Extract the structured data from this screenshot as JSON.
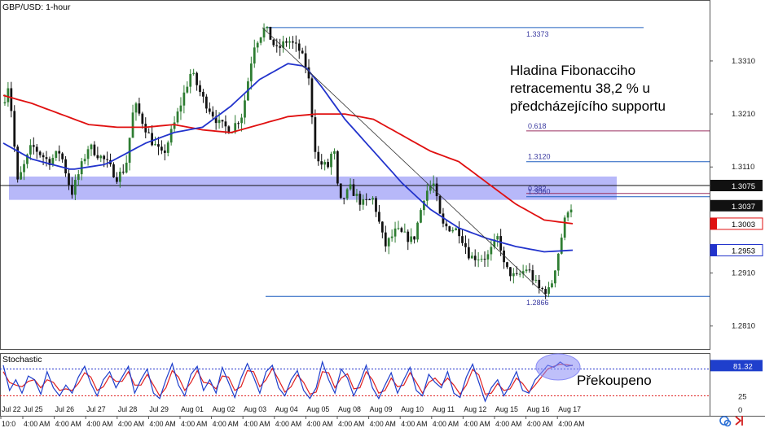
{
  "header": {
    "symbol_title": "GBP/USD: 1-hour",
    "indicator_title": "Stochastic"
  },
  "annotations": {
    "fib_note_line1": "Hladina Fibonacciho",
    "fib_note_line2": "retracementu 38,2 % u",
    "fib_note_line3": "předcházejícího supportu",
    "overbought_note": "Překoupeno"
  },
  "toolbar": {
    "cycle_icon": "cycle-arrows-icon",
    "expand_icon": "expand-arrow-icon"
  },
  "colors": {
    "up_candle": "#2e7d32",
    "down_candle": "#111111",
    "ma_fast": "#2233cc",
    "ma_slow": "#e01010",
    "support_zone": "#8a8cf5",
    "fib_line": "#1f5fbf",
    "fib_text": "#3a3aa0",
    "stoch_k": "#1f3fcc",
    "stoch_d": "#e02020",
    "current_price_bg": "#111111",
    "slow_ma_bg": "#e01010",
    "fast_ma_bg": "#2233cc",
    "highlight_ellipse": "#8a8cf5"
  },
  "chart_data": {
    "type": "candlestick",
    "title": "GBP/USD: 1-hour",
    "price_axis": {
      "ticks": [
        1.331,
        1.321,
        1.311,
        1.291,
        1.281
      ],
      "tick_labels": [
        "1.3310",
        "1.3210",
        "1.3110",
        "1.2910",
        "1.2810"
      ],
      "range": [
        1.2765,
        1.3425
      ]
    },
    "date_labels": [
      "Jul 22",
      "Jul 25",
      "Jul 26",
      "Jul 27",
      "Jul 28",
      "Jul 29",
      "Aug 01",
      "Aug 02",
      "Aug 03",
      "Aug 04",
      "Aug 05",
      "Aug 08",
      "Aug 09",
      "Aug 10",
      "Aug 11",
      "Aug 12",
      "Aug 15",
      "Aug 16",
      "Aug 17"
    ],
    "time_labels": [
      "10:0",
      "4:00 AM",
      "4:00 AM",
      "4:00 AM",
      "4:00 AM",
      "4:00 AM",
      "4:00 AM",
      "4:00 AM",
      "4:00 AM",
      "4:00 AM",
      "4:00 AM",
      "4:00 AM",
      "4:00 AM",
      "4:00 AM",
      "4:00 AM",
      "4:00 AM",
      "4:00 AM",
      "4:00 AM",
      "4:00 AM"
    ],
    "price_path": [
      [
        0,
        1.323
      ],
      [
        0.01,
        1.327
      ],
      [
        0.025,
        1.308
      ],
      [
        0.05,
        1.315
      ],
      [
        0.08,
        1.312
      ],
      [
        0.1,
        1.314
      ],
      [
        0.12,
        1.306
      ],
      [
        0.15,
        1.315
      ],
      [
        0.18,
        1.312
      ],
      [
        0.2,
        1.309
      ],
      [
        0.215,
        1.311
      ],
      [
        0.23,
        1.323
      ],
      [
        0.26,
        1.316
      ],
      [
        0.28,
        1.313
      ],
      [
        0.3,
        1.319
      ],
      [
        0.33,
        1.329
      ],
      [
        0.35,
        1.324
      ],
      [
        0.38,
        1.319
      ],
      [
        0.4,
        1.318
      ],
      [
        0.42,
        1.321
      ],
      [
        0.44,
        1.334
      ],
      [
        0.46,
        1.3373
      ],
      [
        0.48,
        1.333
      ],
      [
        0.5,
        1.335
      ],
      [
        0.52,
        1.333
      ],
      [
        0.535,
        1.329
      ],
      [
        0.55,
        1.312
      ],
      [
        0.57,
        1.311
      ],
      [
        0.58,
        1.315
      ],
      [
        0.59,
        1.304
      ],
      [
        0.61,
        1.307
      ],
      [
        0.63,
        1.304
      ],
      [
        0.65,
        1.305
      ],
      [
        0.67,
        1.296
      ],
      [
        0.69,
        1.299
      ],
      [
        0.72,
        1.297
      ],
      [
        0.74,
        1.306
      ],
      [
        0.755,
        1.308
      ],
      [
        0.77,
        1.3
      ],
      [
        0.8,
        1.299
      ],
      [
        0.82,
        1.294
      ],
      [
        0.85,
        1.294
      ],
      [
        0.87,
        1.298
      ],
      [
        0.88,
        1.292
      ],
      [
        0.9,
        1.29
      ],
      [
        0.92,
        1.292
      ],
      [
        0.94,
        1.288
      ],
      [
        0.96,
        1.2876
      ],
      [
        0.975,
        1.295
      ],
      [
        0.99,
        1.303
      ],
      [
        1.0,
        1.3037
      ]
    ],
    "ma_fast_path": [
      [
        0,
        1.3155
      ],
      [
        0.05,
        1.3125
      ],
      [
        0.12,
        1.3105
      ],
      [
        0.18,
        1.3115
      ],
      [
        0.25,
        1.3155
      ],
      [
        0.3,
        1.3175
      ],
      [
        0.35,
        1.3185
      ],
      [
        0.4,
        1.3225
      ],
      [
        0.45,
        1.3275
      ],
      [
        0.5,
        1.3305
      ],
      [
        0.53,
        1.33
      ],
      [
        0.56,
        1.326
      ],
      [
        0.6,
        1.32
      ],
      [
        0.65,
        1.314
      ],
      [
        0.7,
        1.308
      ],
      [
        0.75,
        1.303
      ],
      [
        0.8,
        1.2995
      ],
      [
        0.85,
        1.2975
      ],
      [
        0.9,
        1.296
      ],
      [
        0.95,
        1.295
      ],
      [
        1.0,
        1.2953
      ]
    ],
    "ma_slow_path": [
      [
        0,
        1.3245
      ],
      [
        0.05,
        1.323
      ],
      [
        0.1,
        1.321
      ],
      [
        0.15,
        1.319
      ],
      [
        0.2,
        1.3185
      ],
      [
        0.25,
        1.3185
      ],
      [
        0.3,
        1.319
      ],
      [
        0.35,
        1.318
      ],
      [
        0.4,
        1.3175
      ],
      [
        0.45,
        1.319
      ],
      [
        0.5,
        1.3205
      ],
      [
        0.55,
        1.321
      ],
      [
        0.6,
        1.321
      ],
      [
        0.65,
        1.32
      ],
      [
        0.7,
        1.317
      ],
      [
        0.75,
        1.314
      ],
      [
        0.8,
        1.312
      ],
      [
        0.85,
        1.308
      ],
      [
        0.9,
        1.304
      ],
      [
        0.95,
        1.301
      ],
      [
        1.0,
        1.3003
      ]
    ],
    "support_zone": [
      1.3048,
      1.3092
    ],
    "horizontal_level": 1.3075,
    "trendline": {
      "from": [
        0.455,
        1.3373
      ],
      "to": [
        0.955,
        1.2866
      ]
    },
    "fib_levels": [
      {
        "label": "1.3373",
        "value": 1.3373
      },
      {
        "label": "0.618",
        "value": 1.3178
      },
      {
        "label": "1.3120",
        "value": 1.312
      },
      {
        "label": "0.382",
        "value": 1.306
      },
      {
        "label": "1.3060",
        "value": 1.3054
      },
      {
        "label": "1.2866",
        "value": 1.2866
      }
    ],
    "current_price_labels": [
      {
        "label": "1.3075",
        "value": 1.3075,
        "style": "current"
      },
      {
        "label": "1.3037",
        "value": 1.3037,
        "style": "current"
      },
      {
        "label": "1.3003",
        "value": 1.3003,
        "style": "slow_ma"
      },
      {
        "label": "1.2953",
        "value": 1.2953,
        "style": "fast_ma"
      }
    ],
    "stochastic": {
      "levels": [
        75,
        25
      ],
      "axis_ticks": [
        25,
        0
      ],
      "axis_tick_labels": [
        "25",
        "0"
      ],
      "current_label": "81.32",
      "current_value": 81.32,
      "k_values": [
        82,
        35,
        55,
        30,
        62,
        55,
        28,
        70,
        40,
        25,
        45,
        30,
        60,
        80,
        48,
        25,
        55,
        70,
        40,
        60,
        80,
        30,
        55,
        75,
        30,
        20,
        55,
        85,
        45,
        25,
        65,
        80,
        35,
        55,
        30,
        78,
        50,
        22,
        58,
        85,
        60,
        30,
        70,
        82,
        40,
        25,
        55,
        72,
        35,
        20,
        40,
        88,
        55,
        30,
        75,
        58,
        25,
        50,
        82,
        40,
        20,
        45,
        68,
        30,
        55,
        78,
        35,
        25,
        65,
        50,
        40,
        70,
        30,
        22,
        60,
        84,
        50,
        15,
        40,
        55,
        25,
        45,
        70,
        35,
        30,
        55,
        68,
        82,
        78,
        88,
        80,
        82
      ],
      "d_values": [
        70,
        50,
        45,
        42,
        52,
        55,
        40,
        55,
        50,
        35,
        38,
        35,
        48,
        68,
        60,
        35,
        42,
        62,
        52,
        52,
        70,
        45,
        45,
        65,
        45,
        25,
        40,
        72,
        60,
        35,
        50,
        72,
        50,
        48,
        38,
        62,
        60,
        35,
        42,
        72,
        70,
        42,
        55,
        76,
        55,
        32,
        42,
        64,
        50,
        28,
        32,
        70,
        68,
        40,
        58,
        66,
        38,
        40,
        70,
        55,
        30,
        35,
        58,
        42,
        45,
        68,
        50,
        30,
        50,
        58,
        45,
        58,
        45,
        28,
        45,
        74,
        64,
        28,
        30,
        48,
        35,
        38,
        58,
        48,
        32,
        45,
        60,
        75,
        80,
        84,
        83,
        81
      ]
    }
  }
}
